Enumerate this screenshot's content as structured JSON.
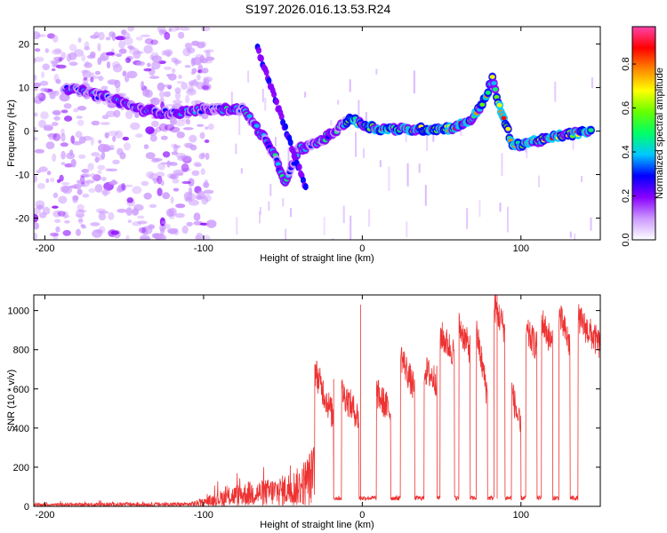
{
  "title": "S197.2026.016.13.53.R24",
  "chart_data": [
    {
      "type": "heatmap",
      "xlabel": "Height of straight line (km)",
      "ylabel": "Frequency (Hz)",
      "xlim": [
        -207,
        150
      ],
      "ylim": [
        -25,
        24
      ],
      "xticks": [
        -200,
        -100,
        0,
        100
      ],
      "xtick_labels": [
        "-200",
        "-100",
        "0",
        "100"
      ],
      "yticks": [
        -20,
        -10,
        0,
        10,
        20
      ],
      "ytick_labels": [
        "-20",
        "-10",
        "0",
        "10",
        "20"
      ],
      "ridge": [
        {
          "x": -188,
          "y": 10
        },
        {
          "x": -175,
          "y": 9
        },
        {
          "x": -158,
          "y": 7.5
        },
        {
          "x": -140,
          "y": 5
        },
        {
          "x": -120,
          "y": 4
        },
        {
          "x": -100,
          "y": 5
        },
        {
          "x": -85,
          "y": 5
        },
        {
          "x": -75,
          "y": 5
        },
        {
          "x": -70,
          "y": 2.5
        },
        {
          "x": -62,
          "y": -1.5
        },
        {
          "x": -55,
          "y": -6
        },
        {
          "x": -48,
          "y": -12
        },
        {
          "x": -40,
          "y": -4
        },
        {
          "x": -33,
          "y": -3.5
        },
        {
          "x": -25,
          "y": -2
        },
        {
          "x": -15,
          "y": 0.5
        },
        {
          "x": -8,
          "y": 3
        },
        {
          "x": 0,
          "y": 1.5
        },
        {
          "x": 10,
          "y": 0.5
        },
        {
          "x": 20,
          "y": 0.5
        },
        {
          "x": 30,
          "y": 0.3
        },
        {
          "x": 40,
          "y": 0.5
        },
        {
          "x": 50,
          "y": 0.5
        },
        {
          "x": 60,
          "y": 1
        },
        {
          "x": 70,
          "y": 3
        },
        {
          "x": 78,
          "y": 8
        },
        {
          "x": 82,
          "y": 12
        },
        {
          "x": 86,
          "y": 6
        },
        {
          "x": 90,
          "y": 2
        },
        {
          "x": 95,
          "y": -3.5
        },
        {
          "x": 105,
          "y": -2.5
        },
        {
          "x": 115,
          "y": -2
        },
        {
          "x": 125,
          "y": -1
        },
        {
          "x": 135,
          "y": -0.5
        },
        {
          "x": 145,
          "y": 0
        }
      ],
      "colorbar": {
        "label": "Normalized spectral amplitude",
        "range": [
          0,
          0.97
        ],
        "ticks": [
          0.0,
          0.2,
          0.4,
          0.6,
          0.8
        ],
        "tick_labels": [
          "0.0",
          "0.2",
          "0.4",
          "0.6",
          "0.8"
        ],
        "colors": [
          "#ffffff",
          "#cc99ff",
          "#8800ff",
          "#0000ff",
          "#00c8ff",
          "#00ff66",
          "#66ff00",
          "#ffff00",
          "#ff8800",
          "#ff0000",
          "#ff44aa"
        ]
      }
    },
    {
      "type": "line",
      "xlabel": "Height of straight line (km)",
      "ylabel": "SNR (10 * v/v)",
      "xlim": [
        -207,
        150
      ],
      "ylim": [
        0,
        1080
      ],
      "xticks": [
        -200,
        -100,
        0,
        100
      ],
      "xtick_labels": [
        "-200",
        "-100",
        "0",
        "100"
      ],
      "yticks": [
        0,
        200,
        400,
        600,
        800,
        1000
      ],
      "ytick_labels": [
        "0",
        "200",
        "400",
        "600",
        "800",
        "1000"
      ],
      "color": "#ee3333",
      "envelope": [
        {
          "x": -207,
          "y": 15
        },
        {
          "x": -150,
          "y": 20
        },
        {
          "x": -110,
          "y": 20
        },
        {
          "x": -100,
          "y": 40
        },
        {
          "x": -90,
          "y": 80
        },
        {
          "x": -80,
          "y": 110
        },
        {
          "x": -70,
          "y": 130
        },
        {
          "x": -60,
          "y": 140
        },
        {
          "x": -50,
          "y": 160
        },
        {
          "x": -40,
          "y": 200
        },
        {
          "x": -35,
          "y": 260
        },
        {
          "x": -30,
          "y": 330
        }
      ],
      "segments": [
        {
          "x0": -30,
          "x1": -18,
          "y0": 700,
          "y1": 450
        },
        {
          "x0": -13,
          "x1": -2,
          "y0": 590,
          "y1": 450
        },
        {
          "x0": 9,
          "x1": 18,
          "y0": 580,
          "y1": 480
        },
        {
          "x0": 24,
          "x1": 33,
          "y0": 780,
          "y1": 590
        },
        {
          "x0": 39,
          "x1": 47,
          "y0": 700,
          "y1": 640
        },
        {
          "x0": 49,
          "x1": 58,
          "y0": 880,
          "y1": 780
        },
        {
          "x0": 61,
          "x1": 68,
          "y0": 920,
          "y1": 800
        },
        {
          "x0": 72,
          "x1": 79,
          "y0": 890,
          "y1": 560
        },
        {
          "x0": 83,
          "x1": 90,
          "y0": 1030,
          "y1": 900
        },
        {
          "x0": 94,
          "x1": 100,
          "y0": 600,
          "y1": 380
        },
        {
          "x0": 103,
          "x1": 110,
          "y0": 890,
          "y1": 820
        },
        {
          "x0": 113,
          "x1": 120,
          "y0": 950,
          "y1": 820
        },
        {
          "x0": 124,
          "x1": 131,
          "y0": 980,
          "y1": 820
        },
        {
          "x0": 136,
          "x1": 150,
          "y0": 960,
          "y1": 820
        }
      ],
      "spikes": [
        {
          "x": -1,
          "y": 1030
        },
        {
          "x": 85,
          "y": 1080
        },
        {
          "x": -18,
          "y": 650
        }
      ]
    }
  ]
}
